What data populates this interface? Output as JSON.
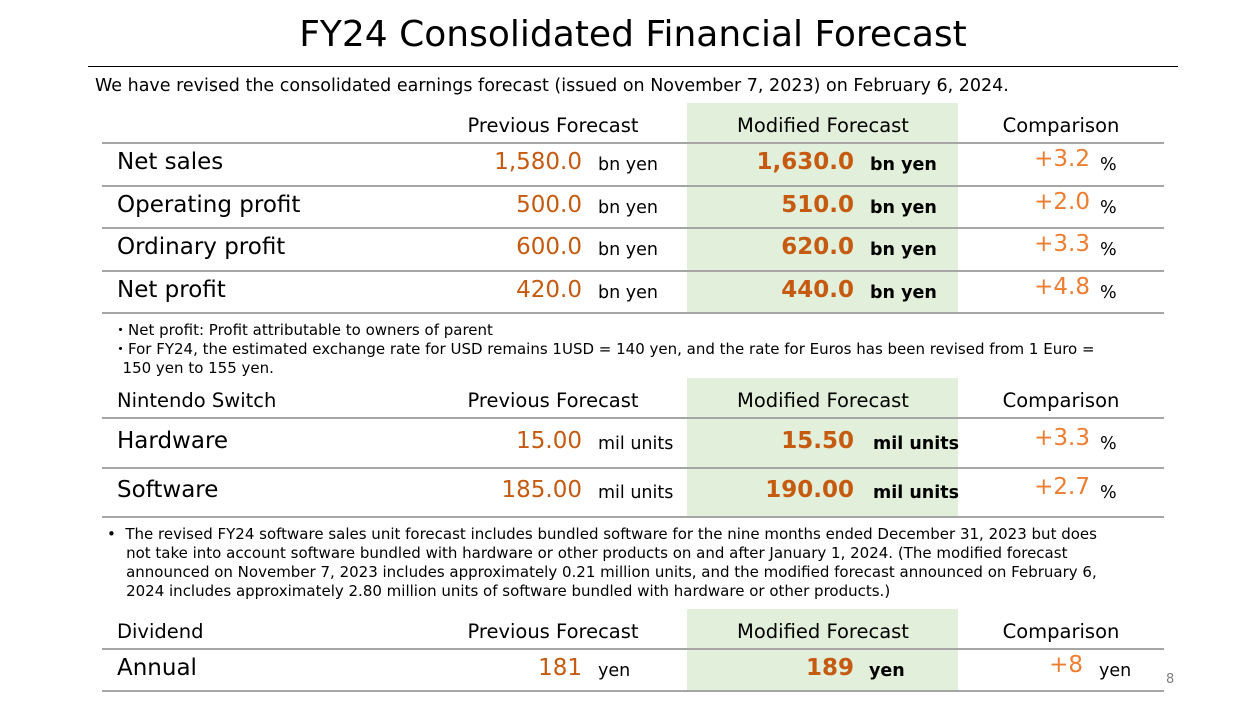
{
  "title": "FY24 Consolidated Financial Forecast",
  "subtitle": "We have revised the consolidated earnings forecast (issued on November 7, 2023) on February 6, 2024.",
  "colors": {
    "value": "#c55a11",
    "comparison": "#ed7d31",
    "highlight": "#e2efda"
  },
  "sections": [
    {
      "headers": {
        "label": "",
        "previous": "Previous Forecast",
        "modified": "Modified Forecast",
        "comparison": "Comparison"
      },
      "rows": [
        {
          "label": "Net sales",
          "previous": "1,580.0",
          "previous_unit": "bn yen",
          "modified": "1,630.0",
          "modified_unit": "bn yen",
          "comparison": "+3.2",
          "comparison_unit": "%"
        },
        {
          "label": "Operating profit",
          "previous": "500.0",
          "previous_unit": "bn yen",
          "modified": "510.0",
          "modified_unit": "bn yen",
          "comparison": "+2.0",
          "comparison_unit": "%"
        },
        {
          "label": "Ordinary profit",
          "previous": "600.0",
          "previous_unit": "bn yen",
          "modified": "620.0",
          "modified_unit": "bn yen",
          "comparison": "+3.3",
          "comparison_unit": "%"
        },
        {
          "label": "Net profit",
          "previous": "420.0",
          "previous_unit": "bn yen",
          "modified": "440.0",
          "modified_unit": "bn yen",
          "comparison": "+4.8",
          "comparison_unit": "%"
        }
      ],
      "notes": [
        "・Net profit: Profit attributable to owners of parent",
        "・For FY24, the estimated exchange rate for USD remains 1USD = 140 yen, and the rate for Euros has been revised from 1 Euro =",
        "  150 yen to 155 yen."
      ]
    },
    {
      "headers": {
        "label": "Nintendo Switch",
        "previous": "Previous Forecast",
        "modified": "Modified Forecast",
        "comparison": "Comparison"
      },
      "rows": [
        {
          "label": "Hardware",
          "previous": "15.00",
          "previous_unit": "mil units",
          "modified": "15.50",
          "modified_unit": "mil units",
          "comparison": "+3.3",
          "comparison_unit": "%"
        },
        {
          "label": "Software",
          "previous": "185.00",
          "previous_unit": "mil units",
          "modified": "190.00",
          "modified_unit": "mil units",
          "comparison": "+2.7",
          "comparison_unit": "%"
        }
      ],
      "notes": [
        "•  The revised FY24 software sales unit forecast includes bundled software for the nine months ended December 31, 2023 but does",
        "    not take into account software bundled with hardware or other products on and after January 1, 2024. (The modified forecast",
        "    announced on November 7, 2023 includes approximately 0.21 million units, and the modified forecast announced on February 6,",
        "    2024 includes approximately 2.80 million units of software bundled with hardware or other products.)"
      ]
    },
    {
      "headers": {
        "label": "Dividend",
        "previous": "Previous Forecast",
        "modified": "Modified Forecast",
        "comparison": "Comparison"
      },
      "rows": [
        {
          "label": "Annual",
          "previous": "181",
          "previous_unit": "yen",
          "modified": "189",
          "modified_unit": "yen",
          "comparison": "+8",
          "comparison_unit": "yen"
        }
      ],
      "notes": []
    }
  ],
  "page_number": "8"
}
